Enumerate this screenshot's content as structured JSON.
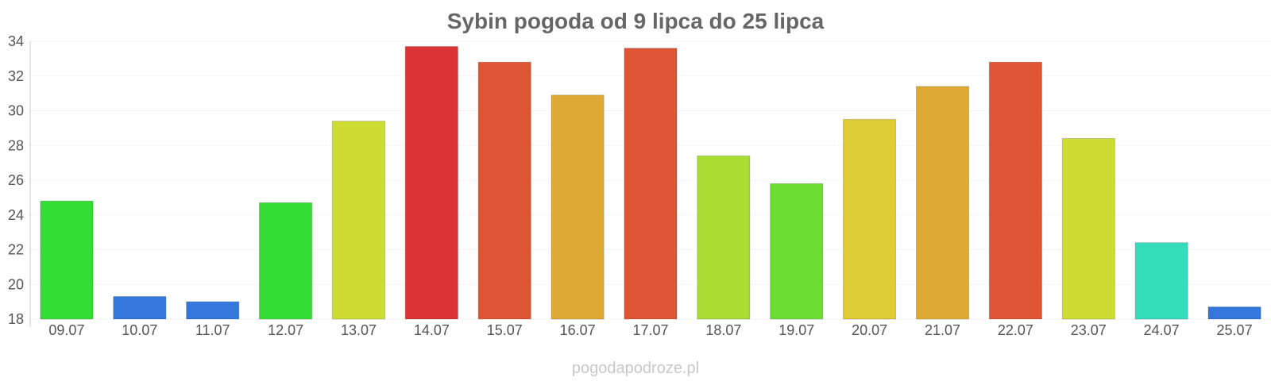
{
  "chart_data": {
    "type": "bar",
    "title": "Sybin pogoda od 9 lipca do 25 lipca",
    "categories": [
      "09.07",
      "10.07",
      "11.07",
      "12.07",
      "13.07",
      "14.07",
      "15.07",
      "16.07",
      "17.07",
      "18.07",
      "19.07",
      "20.07",
      "21.07",
      "22.07",
      "23.07",
      "24.07",
      "25.07"
    ],
    "values": [
      24.8,
      19.3,
      19.0,
      24.7,
      29.4,
      33.7,
      32.8,
      30.9,
      33.6,
      27.4,
      25.8,
      29.5,
      31.4,
      32.8,
      28.4,
      22.4,
      18.7
    ],
    "colors": [
      "#33dd33",
      "#3377dd",
      "#3377dd",
      "#33dd33",
      "#cfdd33",
      "#dd3333",
      "#dd5533",
      "#ddaa33",
      "#dd5533",
      "#aadd33",
      "#6cdd33",
      "#ddcc33",
      "#ddaa33",
      "#dd5533",
      "#cfdd33",
      "#33ddbb",
      "#3377dd"
    ],
    "ylim": [
      18,
      34
    ],
    "yticks": [
      18,
      20,
      22,
      24,
      26,
      28,
      30,
      32,
      34
    ],
    "grid": true,
    "xlabel": "",
    "ylabel": "",
    "source": "pogodapodroze.pl"
  }
}
